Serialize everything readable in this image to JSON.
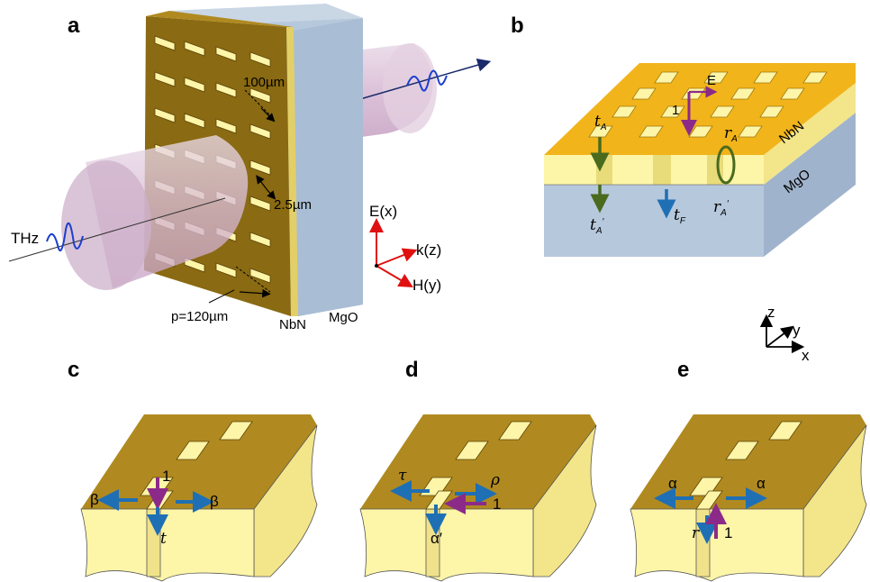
{
  "panels": {
    "a": "a",
    "b": "b",
    "c": "c",
    "d": "d",
    "e": "e"
  },
  "panel_a": {
    "thz": "THz",
    "dim_100": "100µm",
    "dim_25": "2.5µm",
    "period": "p=120µm",
    "nbn": "NbN",
    "mgo": "MgO",
    "e_axis": "E(x)",
    "k_axis": "k(z)",
    "h_axis": "H(y)"
  },
  "panel_b": {
    "E": "E",
    "one": "1",
    "tA": "t",
    "tA_sub": "A",
    "tA2": "t",
    "tA2_sub": "A",
    "tA2_prime": "′",
    "tF": "t",
    "tF_sub": "F",
    "rA": "r",
    "rA_sub": "A",
    "rA2": "r",
    "rA2_sub": "A",
    "rA2_prime": "′",
    "nbn": "NbN",
    "mgo": "MgO"
  },
  "axes_xyz": {
    "z": "z",
    "y": "y",
    "x": "x"
  },
  "panel_c": {
    "beta_l": "β",
    "beta_r": "β",
    "one": "1",
    "t": "t"
  },
  "panel_d": {
    "tau": "τ",
    "rho": "ρ",
    "one": "1",
    "alpha_p": "α′"
  },
  "panel_e": {
    "alpha_l": "α",
    "alpha_r": "α",
    "r": "r",
    "one": "1"
  },
  "colors": {
    "gold_top": "#c39a1e",
    "gold_face": "#8a6a12",
    "yellow_layer": "#fdf5a8",
    "yellow_side": "#f3e58a",
    "mgo_top": "#b4c4da",
    "mgo_front": "#b6c8dc",
    "mgo_side": "#9fb3cc",
    "beam": "#d8b8d6",
    "purple": "#8c2a8a",
    "blue": "#1f6fb5",
    "green": "#4a6a1e",
    "red": "#e01010",
    "navy": "#1a2a6a"
  }
}
